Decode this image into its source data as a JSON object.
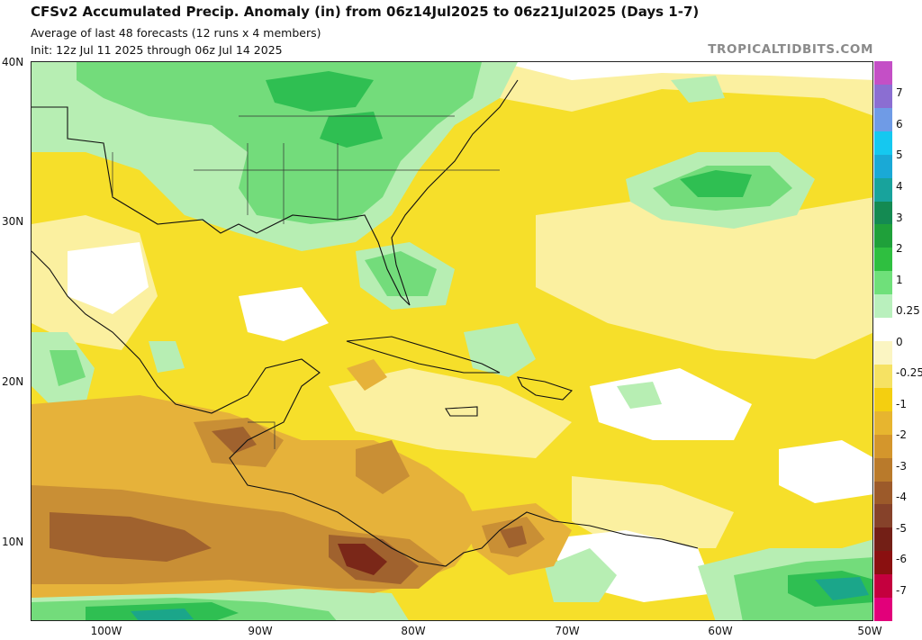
{
  "header": {
    "title": "CFSv2 Accumulated Precip. Anomaly (in) from 06z14Jul2025 to 06z21Jul2025 (Days 1-7)",
    "subtitle1": "Average of last 48 forecasts (12 runs x 4 members)",
    "subtitle2": "Init: 12z Jul 11 2025 through 06z Jul 14 2025",
    "brand": "TROPICALTIDBITS.COM"
  },
  "map": {
    "lat_labels": [
      "40N",
      "30N",
      "20N",
      "10N"
    ],
    "lon_labels": [
      "100W",
      "90W",
      "80W",
      "70W",
      "60W",
      "50W"
    ],
    "colors": {
      "background": "#f6df2a",
      "light_yellow": "#fbf0a0",
      "white": "#ffffff",
      "light_green": "#b7eeb3",
      "green": "#73dc7b",
      "dark_green": "#2fbf52",
      "teal": "#1ba68a",
      "orange": "#e6b23a",
      "brown": "#c98f35",
      "dark_brown": "#a0622e",
      "red_brown": "#7a2718"
    }
  },
  "colorbar": {
    "labels": [
      "7",
      "6",
      "5",
      "4",
      "3",
      "2",
      "1",
      "0.25",
      "0",
      "-0.25",
      "-1",
      "-2",
      "-3",
      "-4",
      "-5",
      "-6",
      "-7"
    ],
    "colors": [
      "#c44fc6",
      "#8b6ed2",
      "#6f9be6",
      "#15c8f0",
      "#1aa9d6",
      "#18a39c",
      "#148a52",
      "#1fa03a",
      "#2fbf40",
      "#6fe07a",
      "#b9f0bd",
      "#ffffff",
      "#fbf5c2",
      "#f6e263",
      "#f4cf10",
      "#e7b52f",
      "#d4962c",
      "#b97a2b",
      "#9c5a2a",
      "#86422a",
      "#731f16",
      "#8a1010",
      "#c4003e",
      "#e2007a"
    ]
  }
}
